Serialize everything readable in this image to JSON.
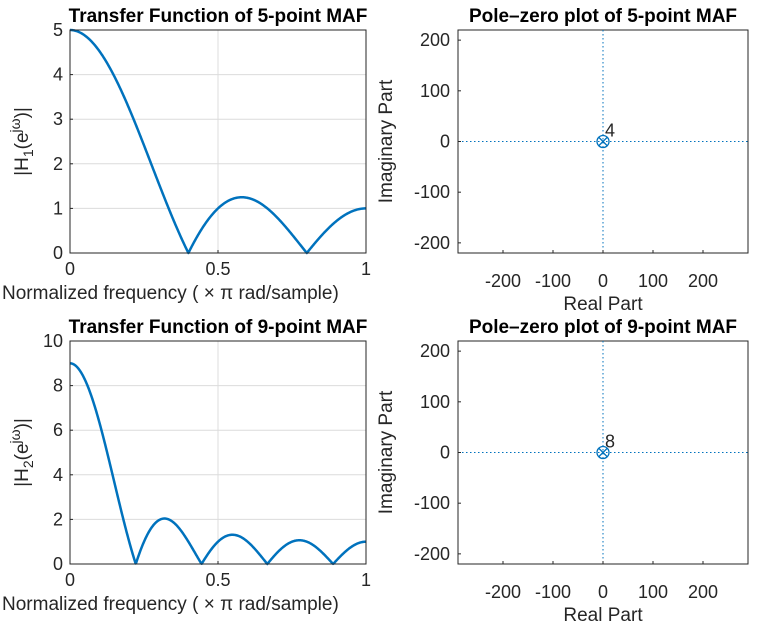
{
  "chart_data": [
    {
      "type": "line",
      "title": "Transfer Function of 5-point MAF",
      "xlabel": "Normalized  frequency    ( × π  rad/sample)",
      "ylabel": "|H1(e^jω)|",
      "ylabel_parts": {
        "pre": "|H",
        "sub": "1",
        "mid": "(e",
        "sup": "jω",
        "post": ")|"
      },
      "xlim": [
        0,
        1
      ],
      "ylim": [
        0,
        5
      ],
      "xticks": [
        "0",
        "0.5",
        "1"
      ],
      "yticks": [
        "0",
        "1",
        "2",
        "3",
        "4",
        "5"
      ],
      "grid": true,
      "series": [
        {
          "N": 5,
          "color": "#0072BD",
          "x": [
            0,
            0.1,
            0.2,
            0.3,
            0.4,
            0.5,
            0.58,
            0.7,
            0.8,
            0.9,
            1.0
          ],
          "y": [
            5,
            4.27,
            2.62,
            0.85,
            0,
            1.0,
            1.25,
            0.87,
            0,
            0.62,
            1.0
          ]
        }
      ]
    },
    {
      "type": "scatter",
      "title": "Pole–zero plot of 5-point MAF",
      "xlabel": "Real Part",
      "ylabel": "Imaginary Part",
      "xlim": [
        -290,
        290
      ],
      "ylim": [
        -220,
        220
      ],
      "xticks": [
        "-200",
        "-100",
        "0",
        "100",
        "200"
      ],
      "yticks": [
        "-200",
        "-100",
        "0",
        "100",
        "200"
      ],
      "zeros": [
        {
          "x": 0,
          "y": 0
        }
      ],
      "poles": [
        {
          "x": 0,
          "y": 0
        }
      ],
      "annotation": "4"
    },
    {
      "type": "line",
      "title": "Transfer Function of 9-point MAF",
      "xlabel": "Normalized  frequency    ( × π  rad/sample)",
      "ylabel": "|H2(e^jω)|",
      "ylabel_parts": {
        "pre": "|H",
        "sub": "2",
        "mid": "(e",
        "sup": "jω",
        "post": ")|"
      },
      "xlim": [
        0,
        1
      ],
      "ylim": [
        0,
        10
      ],
      "xticks": [
        "0",
        "0.5",
        "1"
      ],
      "yticks": [
        "0",
        "2",
        "4",
        "6",
        "8",
        "10"
      ],
      "grid": true,
      "series": [
        {
          "N": 9,
          "color": "#0072BD",
          "x": [
            0,
            0.1,
            0.222,
            0.32,
            0.444,
            0.55,
            0.667,
            0.78,
            0.889,
            1.0
          ],
          "y": [
            9,
            6.0,
            0,
            2.05,
            0,
            1.3,
            0,
            1.07,
            0,
            1.0
          ]
        }
      ]
    },
    {
      "type": "scatter",
      "title": "Pole–zero plot of 9-point MAF",
      "xlabel": "Real Part",
      "ylabel": "Imaginary Part",
      "xlim": [
        -290,
        290
      ],
      "ylim": [
        -220,
        220
      ],
      "xticks": [
        "-200",
        "-100",
        "0",
        "100",
        "200"
      ],
      "yticks": [
        "-200",
        "-100",
        "0",
        "100",
        "200"
      ],
      "zeros": [
        {
          "x": 0,
          "y": 0
        }
      ],
      "poles": [
        {
          "x": 0,
          "y": 0
        }
      ],
      "annotation": "8"
    }
  ]
}
